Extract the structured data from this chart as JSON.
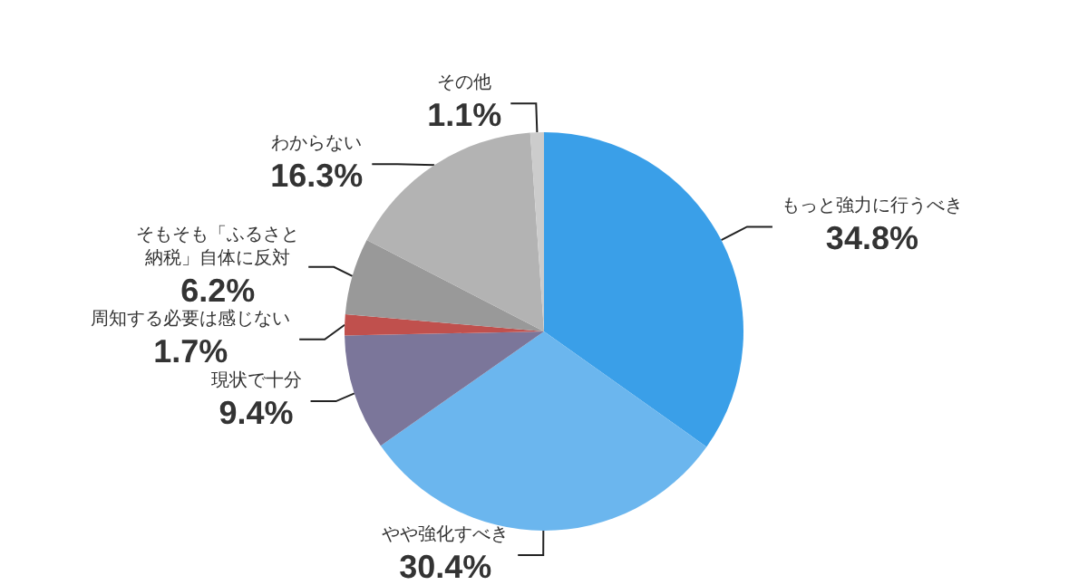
{
  "chart_data": {
    "type": "pie",
    "categories": [
      "もっと強力に行うべき",
      "やや強化すべき",
      "現状で十分",
      "周知する必要は感じない",
      "そもそも「ふるさと納税」自体に反対",
      "わからない",
      "その他"
    ],
    "values": [
      34.8,
      30.4,
      9.4,
      1.7,
      6.2,
      16.3,
      1.1
    ],
    "value_labels": [
      "34.8%",
      "30.4%",
      "9.4%",
      "1.7%",
      "6.2%",
      "16.3%",
      "1.1%"
    ],
    "colors": [
      "#3a9fe8",
      "#6bb6ee",
      "#7b769a",
      "#c0504d",
      "#999999",
      "#b3b3b3",
      "#cccccc"
    ],
    "legend": false
  }
}
